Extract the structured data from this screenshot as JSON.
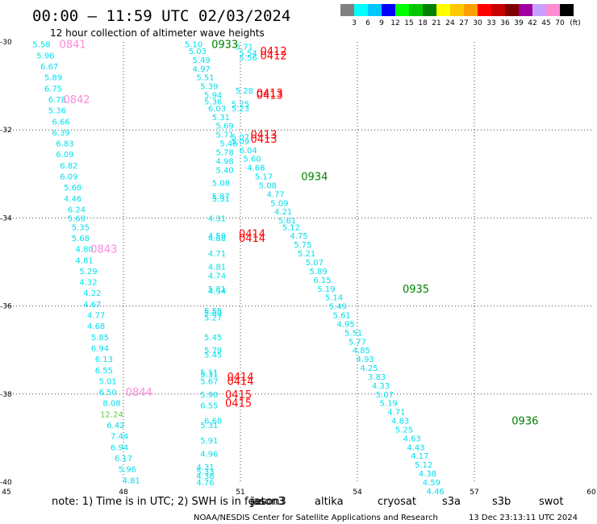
{
  "chart_data": {
    "type": "scatter",
    "title": "00:00 – 11:59 UTC 02/03/2024",
    "subtitle": "12 hour collection of altimeter wave heights",
    "xlim": [
      45,
      60
    ],
    "ylim": [
      -40,
      -30
    ],
    "x_ticks": [
      "45",
      "48",
      "51",
      "54",
      "57",
      "60"
    ],
    "y_ticks": [
      "-30",
      "-32",
      "-34",
      "-36",
      "-38",
      "-40"
    ],
    "grid": true,
    "color_scale": {
      "unit": "(ft)",
      "labels": [
        "3",
        "6",
        "9",
        "12",
        "15",
        "18",
        "21",
        "24",
        "27",
        "30",
        "33",
        "36",
        "39",
        "42",
        "45",
        "70"
      ],
      "colors": [
        "#808080",
        "#00ffff",
        "#00c8ff",
        "#0000ff",
        "#00ff00",
        "#00c800",
        "#008000",
        "#ffff00",
        "#ffc800",
        "#ffa000",
        "#ff0000",
        "#c80000",
        "#800000",
        "#a000a0",
        "#c8a0ff",
        "#ff8cd2",
        "#000000"
      ]
    },
    "series": [
      {
        "color": "#ff88dd",
        "points": [
          {
            "x": 45.9,
            "y": -30.05,
            "v": "5.58"
          },
          {
            "x": 46.0,
            "y": -30.3,
            "v": "5.96"
          },
          {
            "x": 46.1,
            "y": -30.55,
            "v": "6.67"
          },
          {
            "x": 46.2,
            "y": -30.8,
            "v": "5.89"
          },
          {
            "x": 46.2,
            "y": -31.05,
            "v": "6.75"
          },
          {
            "x": 46.3,
            "y": -31.3,
            "v": "6.78"
          },
          {
            "x": 46.3,
            "y": -31.55,
            "v": "5.36"
          },
          {
            "x": 46.4,
            "y": -31.8,
            "v": "6.66"
          },
          {
            "x": 46.4,
            "y": -32.05,
            "v": "6.39"
          },
          {
            "x": 46.5,
            "y": -32.3,
            "v": "6.83"
          },
          {
            "x": 46.5,
            "y": -32.55,
            "v": "6.09"
          },
          {
            "x": 46.6,
            "y": -32.8,
            "v": "6.82"
          },
          {
            "x": 46.6,
            "y": -33.05,
            "v": "6.09"
          },
          {
            "x": 46.7,
            "y": -33.3,
            "v": "5.68"
          },
          {
            "x": 46.7,
            "y": -33.55,
            "v": "4.46"
          },
          {
            "x": 46.8,
            "y": -33.8,
            "v": "6.24"
          },
          {
            "x": 46.8,
            "y": -34.0,
            "v": "5.69"
          },
          {
            "x": 46.9,
            "y": -34.2,
            "v": "5.35"
          },
          {
            "x": 46.9,
            "y": -34.45,
            "v": "5.68"
          },
          {
            "x": 47.0,
            "y": -34.7,
            "v": "4.80"
          },
          {
            "x": 47.0,
            "y": -34.95,
            "v": "4.81"
          },
          {
            "x": 47.1,
            "y": -35.2,
            "v": "5.29"
          },
          {
            "x": 47.1,
            "y": -35.45,
            "v": "4.32"
          },
          {
            "x": 47.2,
            "y": -35.7,
            "v": "4.22"
          },
          {
            "x": 47.2,
            "y": -35.95,
            "v": "4.67"
          },
          {
            "x": 47.3,
            "y": -36.2,
            "v": "4.77"
          },
          {
            "x": 47.3,
            "y": -36.45,
            "v": "4.68"
          },
          {
            "x": 47.4,
            "y": -36.7,
            "v": "5.85"
          },
          {
            "x": 47.4,
            "y": -36.95,
            "v": "6.94"
          },
          {
            "x": 47.5,
            "y": -37.2,
            "v": "6.13"
          },
          {
            "x": 47.5,
            "y": -37.45,
            "v": "6.55"
          },
          {
            "x": 47.6,
            "y": -37.7,
            "v": "5.01"
          },
          {
            "x": 47.6,
            "y": -37.95,
            "v": "6.50"
          },
          {
            "x": 47.7,
            "y": -38.2,
            "v": "8.08"
          },
          {
            "x": 47.7,
            "y": -38.45,
            "v": "12.24",
            "color": "#66cc44"
          },
          {
            "x": 47.8,
            "y": -38.7,
            "v": "6.42"
          },
          {
            "x": 47.9,
            "y": -38.95,
            "v": "7.44"
          },
          {
            "x": 47.9,
            "y": -39.2,
            "v": "6.94"
          },
          {
            "x": 48.0,
            "y": -39.45,
            "v": "6.17"
          },
          {
            "x": 48.1,
            "y": -39.7,
            "v": "5.96"
          },
          {
            "x": 48.2,
            "y": -39.95,
            "v": "4.81"
          }
        ]
      },
      {
        "color": "#ff88dd",
        "points": [
          {
            "x": 49.8,
            "y": -30.05,
            "v": "5.10"
          },
          {
            "x": 49.9,
            "y": -30.2,
            "v": "5.03"
          },
          {
            "x": 50.0,
            "y": -30.4,
            "v": "5.49"
          },
          {
            "x": 50.0,
            "y": -30.6,
            "v": "4.97"
          },
          {
            "x": 50.1,
            "y": -30.8,
            "v": "5.51"
          },
          {
            "x": 50.2,
            "y": -31.0,
            "v": "5.39"
          },
          {
            "x": 50.3,
            "y": -31.2,
            "v": "5.94"
          },
          {
            "x": 50.3,
            "y": -31.35,
            "v": "5.36"
          },
          {
            "x": 50.4,
            "y": -31.5,
            "v": "6.03"
          },
          {
            "x": 50.5,
            "y": -31.7,
            "v": "5.31"
          },
          {
            "x": 50.6,
            "y": -31.9,
            "v": "5.69"
          },
          {
            "x": 50.6,
            "y": -32.1,
            "v": "5.71"
          },
          {
            "x": 50.7,
            "y": -32.3,
            "v": "5.46"
          },
          {
            "x": 50.6,
            "y": -32.5,
            "v": "5.78"
          },
          {
            "x": 50.6,
            "y": -32.7,
            "v": "4.98"
          },
          {
            "x": 50.6,
            "y": -32.9,
            "v": "5.40"
          },
          {
            "x": 50.5,
            "y": -33.2,
            "v": "5.08"
          },
          {
            "x": 50.5,
            "y": -33.5,
            "v": "5.87"
          },
          {
            "x": 50.5,
            "y": -33.55,
            "v": "5.31"
          },
          {
            "x": 50.4,
            "y": -34.0,
            "v": "4.31"
          },
          {
            "x": 50.4,
            "y": -34.4,
            "v": "4.59"
          },
          {
            "x": 50.4,
            "y": -34.45,
            "v": "4.88"
          },
          {
            "x": 50.4,
            "y": -34.8,
            "v": "4.71"
          },
          {
            "x": 50.4,
            "y": -35.1,
            "v": "4.81"
          },
          {
            "x": 50.4,
            "y": -35.3,
            "v": "4.74"
          },
          {
            "x": 50.4,
            "y": -35.6,
            "v": "5.81"
          },
          {
            "x": 50.4,
            "y": -35.65,
            "v": "4.94"
          },
          {
            "x": 50.3,
            "y": -36.1,
            "v": "5.55"
          },
          {
            "x": 50.3,
            "y": -36.15,
            "v": "5.69"
          },
          {
            "x": 50.3,
            "y": -36.25,
            "v": "5.27"
          },
          {
            "x": 50.3,
            "y": -36.7,
            "v": "5.45"
          },
          {
            "x": 50.3,
            "y": -37.0,
            "v": "5.79"
          },
          {
            "x": 50.3,
            "y": -37.1,
            "v": "5.45"
          },
          {
            "x": 50.2,
            "y": -37.5,
            "v": "5.11"
          },
          {
            "x": 50.2,
            "y": -37.55,
            "v": "5.31"
          },
          {
            "x": 50.2,
            "y": -37.7,
            "v": "5.67"
          },
          {
            "x": 50.2,
            "y": -38.0,
            "v": "5.90"
          },
          {
            "x": 50.2,
            "y": -38.25,
            "v": "6.55"
          },
          {
            "x": 50.3,
            "y": -38.6,
            "v": "6.68"
          },
          {
            "x": 50.2,
            "y": -38.7,
            "v": "5.31"
          },
          {
            "x": 50.2,
            "y": -39.05,
            "v": "5.91"
          },
          {
            "x": 50.2,
            "y": -39.35,
            "v": "4.96"
          },
          {
            "x": 50.1,
            "y": -39.65,
            "v": "4.31"
          },
          {
            "x": 50.1,
            "y": -39.75,
            "v": "5.33"
          },
          {
            "x": 50.1,
            "y": -39.85,
            "v": "4.38"
          },
          {
            "x": 50.1,
            "y": -40.0,
            "v": "4.76"
          }
        ]
      },
      {
        "color": "#ff88dd",
        "points": [
          {
            "x": 51.1,
            "y": -30.1,
            "v": "5.71"
          },
          {
            "x": 51.2,
            "y": -30.25,
            "v": "5.54"
          },
          {
            "x": 51.2,
            "y": -30.35,
            "v": "5.56"
          },
          {
            "x": 51.1,
            "y": -31.1,
            "v": "5.28"
          },
          {
            "x": 51.0,
            "y": -31.4,
            "v": "5.25"
          },
          {
            "x": 51.0,
            "y": -31.5,
            "v": "5.23"
          },
          {
            "x": 51.0,
            "y": -32.15,
            "v": "5.07"
          },
          {
            "x": 51.0,
            "y": -32.25,
            "v": "5.09"
          },
          {
            "x": 51.2,
            "y": -32.45,
            "v": "6.04"
          },
          {
            "x": 51.3,
            "y": -32.65,
            "v": "5.60"
          },
          {
            "x": 51.4,
            "y": -32.85,
            "v": "4.68"
          },
          {
            "x": 51.6,
            "y": -33.05,
            "v": "5.17"
          },
          {
            "x": 51.7,
            "y": -33.25,
            "v": "5.08"
          },
          {
            "x": 51.9,
            "y": -33.45,
            "v": "4.77"
          },
          {
            "x": 52.0,
            "y": -33.65,
            "v": "5.09"
          },
          {
            "x": 52.1,
            "y": -33.85,
            "v": "4.21"
          },
          {
            "x": 52.2,
            "y": -34.05,
            "v": "5.61"
          },
          {
            "x": 52.3,
            "y": -34.2,
            "v": "5.12"
          },
          {
            "x": 52.5,
            "y": -34.4,
            "v": "4.75"
          },
          {
            "x": 52.6,
            "y": -34.6,
            "v": "5.75"
          },
          {
            "x": 52.7,
            "y": -34.8,
            "v": "5.21"
          },
          {
            "x": 52.9,
            "y": -35.0,
            "v": "5.07"
          },
          {
            "x": 53.0,
            "y": -35.2,
            "v": "5.89"
          },
          {
            "x": 53.1,
            "y": -35.4,
            "v": "6.15"
          },
          {
            "x": 53.2,
            "y": -35.6,
            "v": "5.19"
          },
          {
            "x": 53.4,
            "y": -35.8,
            "v": "5.14"
          },
          {
            "x": 53.5,
            "y": -36.0,
            "v": "5.49"
          },
          {
            "x": 53.6,
            "y": -36.2,
            "v": "5.61"
          },
          {
            "x": 53.7,
            "y": -36.4,
            "v": "4.95"
          },
          {
            "x": 53.9,
            "y": -36.6,
            "v": "5.51"
          },
          {
            "x": 54.0,
            "y": -36.8,
            "v": "5.77"
          },
          {
            "x": 54.1,
            "y": -37.0,
            "v": "4.85"
          },
          {
            "x": 54.2,
            "y": -37.2,
            "v": "4.93"
          },
          {
            "x": 54.3,
            "y": -37.4,
            "v": "4.25"
          },
          {
            "x": 54.5,
            "y": -37.6,
            "v": "3.83"
          },
          {
            "x": 54.6,
            "y": -37.8,
            "v": "4.33"
          },
          {
            "x": 54.7,
            "y": -38.0,
            "v": "5.07"
          },
          {
            "x": 54.8,
            "y": -38.2,
            "v": "5.19"
          },
          {
            "x": 55.0,
            "y": -38.4,
            "v": "4.71"
          },
          {
            "x": 55.1,
            "y": -38.6,
            "v": "4.83"
          },
          {
            "x": 55.2,
            "y": -38.8,
            "v": "5.25"
          },
          {
            "x": 55.4,
            "y": -39.0,
            "v": "4.63"
          },
          {
            "x": 55.5,
            "y": -39.2,
            "v": "4.43"
          },
          {
            "x": 55.6,
            "y": -39.4,
            "v": "4.17"
          },
          {
            "x": 55.7,
            "y": -39.6,
            "v": "5.12"
          },
          {
            "x": 55.8,
            "y": -39.8,
            "v": "4.38"
          },
          {
            "x": 55.9,
            "y": -40.0,
            "v": "4.59"
          },
          {
            "x": 56.0,
            "y": -40.2,
            "v": "4.46"
          }
        ]
      }
    ],
    "pass_labels": [
      {
        "x": 46.7,
        "y": -30.05,
        "t": "0841",
        "color": "#ff88dd"
      },
      {
        "x": 46.8,
        "y": -31.3,
        "t": "0842",
        "color": "#ff88dd"
      },
      {
        "x": 47.5,
        "y": -34.7,
        "t": "0843",
        "color": "#ff88dd"
      },
      {
        "x": 48.4,
        "y": -37.95,
        "t": "0844",
        "color": "#ff88dd"
      },
      {
        "x": 50.6,
        "y": -30.05,
        "t": "0933",
        "color": "#008000"
      },
      {
        "x": 52.9,
        "y": -33.05,
        "t": "0934",
        "color": "#008000"
      },
      {
        "x": 55.5,
        "y": -35.6,
        "t": "0935",
        "color": "#008000"
      },
      {
        "x": 58.3,
        "y": -38.6,
        "t": "0936",
        "color": "#008000"
      },
      {
        "x": 51.85,
        "y": -30.2,
        "t": "0412",
        "color": "#ff0000"
      },
      {
        "x": 51.85,
        "y": -30.3,
        "t": "0412",
        "color": "#ff0000"
      },
      {
        "x": 51.75,
        "y": -31.15,
        "t": "0413",
        "color": "#ff0000"
      },
      {
        "x": 51.75,
        "y": -31.2,
        "t": "0413",
        "color": "#ff0000"
      },
      {
        "x": 51.6,
        "y": -32.1,
        "t": "0413",
        "color": "#ff0000"
      },
      {
        "x": 51.6,
        "y": -32.2,
        "t": "0413",
        "color": "#ff0000"
      },
      {
        "x": 51.3,
        "y": -34.35,
        "t": "0414",
        "color": "#ff0000"
      },
      {
        "x": 51.3,
        "y": -34.45,
        "t": "0414",
        "color": "#ff0000"
      },
      {
        "x": 51.0,
        "y": -37.6,
        "t": "0414",
        "color": "#ff0000"
      },
      {
        "x": 51.0,
        "y": -37.7,
        "t": "0414",
        "color": "#ff0000"
      },
      {
        "x": 50.95,
        "y": -38.0,
        "t": "0415",
        "color": "#ff0000"
      },
      {
        "x": 50.95,
        "y": -38.2,
        "t": "0415",
        "color": "#ff0000"
      }
    ],
    "legend": [
      {
        "label": "jason3",
        "color": "#00aa00"
      },
      {
        "label": "altika",
        "color": "#ff8800"
      },
      {
        "label": "cryosat",
        "color": "#ff0000"
      },
      {
        "label": "s3a",
        "color": "#cc0000"
      },
      {
        "label": "s3b",
        "color": "#c8a0ff"
      },
      {
        "label": "swot",
        "color": "#ff88dd"
      }
    ],
    "legend_overlay": {
      "label": "jason3",
      "color": "#008000"
    }
  },
  "notes": {
    "note_text": "note:  1) Time is in UTC;  2) SWH is in feet",
    "credit": "NOAA/NESDIS Center for Satellite Applications and Research",
    "timestamp": "13 Dec 23:13:11 UTC 2024"
  },
  "colors": {
    "swh_text": "#00e0ee"
  }
}
